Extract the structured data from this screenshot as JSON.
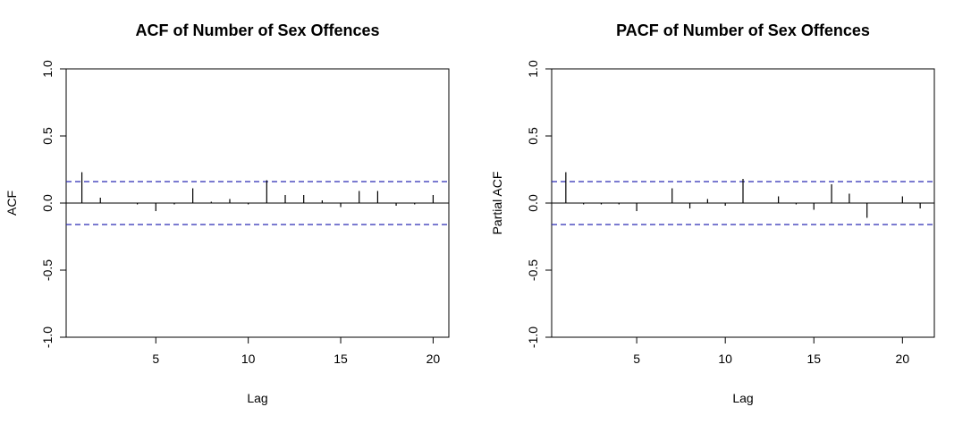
{
  "chart_data": [
    {
      "type": "bar",
      "title": "ACF of Number of Sex Offences",
      "xlabel": "Lag",
      "ylabel": "ACF",
      "ylim": [
        -1.0,
        1.0
      ],
      "xlim": [
        0.15,
        20.85
      ],
      "xticks": [
        "5",
        "10",
        "15",
        "20"
      ],
      "yticks": [
        "-1.0",
        "-0.5",
        "0.0",
        "0.5",
        "1.0"
      ],
      "confidence_bound": 0.16,
      "confidence_color": "#2b2bb3",
      "lags": [
        1,
        2,
        3,
        4,
        5,
        6,
        7,
        8,
        9,
        10,
        11,
        12,
        13,
        14,
        15,
        16,
        17,
        18,
        19,
        20
      ],
      "values": [
        0.23,
        0.04,
        0.0,
        -0.01,
        -0.06,
        -0.01,
        0.11,
        0.01,
        0.03,
        -0.01,
        0.17,
        0.06,
        0.06,
        0.02,
        -0.03,
        0.09,
        0.09,
        -0.02,
        -0.01,
        0.06
      ]
    },
    {
      "type": "bar",
      "title": "PACF of Number of Sex Offences",
      "xlabel": "Lag",
      "ylabel": "Partial ACF",
      "ylim": [
        -1.0,
        1.0
      ],
      "xlim": [
        0.2,
        21.8
      ],
      "xticks": [
        "5",
        "10",
        "15",
        "20"
      ],
      "yticks": [
        "-1.0",
        "-0.5",
        "0.0",
        "0.5",
        "1.0"
      ],
      "confidence_bound": 0.16,
      "confidence_color": "#2b2bb3",
      "lags": [
        1,
        2,
        3,
        4,
        5,
        6,
        7,
        8,
        9,
        10,
        11,
        12,
        13,
        14,
        15,
        16,
        17,
        18,
        19,
        20,
        21
      ],
      "values": [
        0.23,
        -0.01,
        -0.01,
        -0.01,
        -0.06,
        0.0,
        0.11,
        -0.04,
        0.03,
        -0.02,
        0.18,
        0.0,
        0.05,
        -0.01,
        -0.05,
        0.14,
        0.07,
        -0.11,
        0.0,
        0.05,
        -0.04
      ]
    }
  ]
}
